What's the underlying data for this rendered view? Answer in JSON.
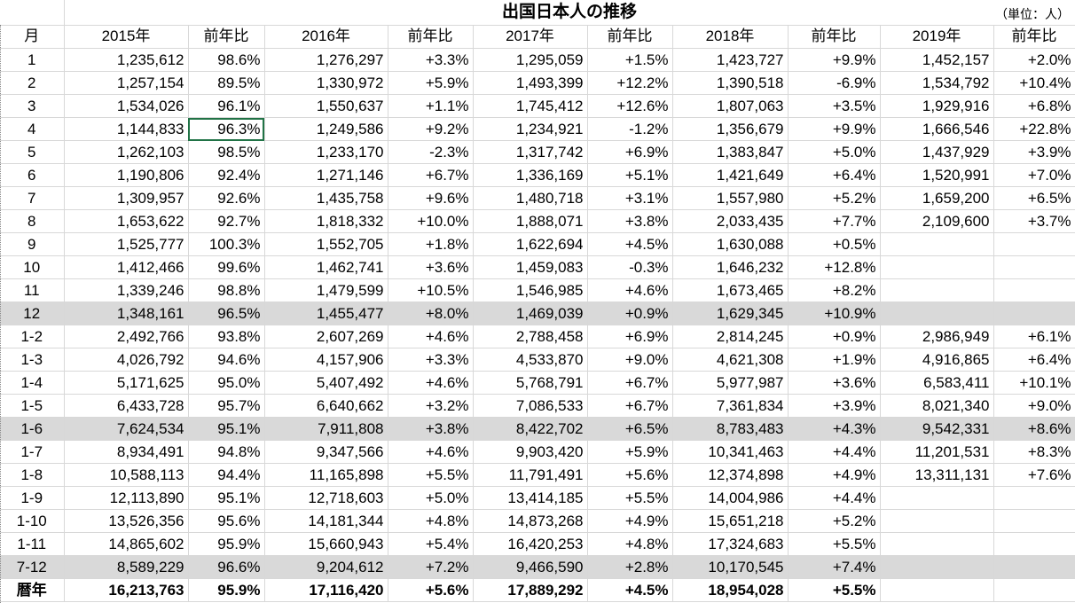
{
  "title": "出国日本人の推移",
  "unit": "（単位：人）",
  "headers": [
    "月",
    "2015年",
    "前年比",
    "2016年",
    "前年比",
    "2017年",
    "前年比",
    "2018年",
    "前年比",
    "2019年",
    "前年比"
  ],
  "rows": [
    {
      "cells": [
        "1",
        "1,235,612",
        "98.6%",
        "1,276,297",
        "+3.3%",
        "1,295,059",
        "+1.5%",
        "1,423,727",
        "+9.9%",
        "1,452,157",
        "+2.0%"
      ]
    },
    {
      "cells": [
        "2",
        "1,257,154",
        "89.5%",
        "1,330,972",
        "+5.9%",
        "1,493,399",
        "+12.2%",
        "1,390,518",
        "-6.9%",
        "1,534,792",
        "+10.4%"
      ]
    },
    {
      "cells": [
        "3",
        "1,534,026",
        "96.1%",
        "1,550,637",
        "+1.1%",
        "1,745,412",
        "+12.6%",
        "1,807,063",
        "+3.5%",
        "1,929,916",
        "+6.8%"
      ]
    },
    {
      "cells": [
        "4",
        "1,144,833",
        "96.3%",
        "1,249,586",
        "+9.2%",
        "1,234,921",
        "-1.2%",
        "1,356,679",
        "+9.9%",
        "1,666,546",
        "+22.8%"
      ]
    },
    {
      "cells": [
        "5",
        "1,262,103",
        "98.5%",
        "1,233,170",
        "-2.3%",
        "1,317,742",
        "+6.9%",
        "1,383,847",
        "+5.0%",
        "1,437,929",
        "+3.9%"
      ]
    },
    {
      "cells": [
        "6",
        "1,190,806",
        "92.4%",
        "1,271,146",
        "+6.7%",
        "1,336,169",
        "+5.1%",
        "1,421,649",
        "+6.4%",
        "1,520,991",
        "+7.0%"
      ]
    },
    {
      "cells": [
        "7",
        "1,309,957",
        "92.6%",
        "1,435,758",
        "+9.6%",
        "1,480,718",
        "+3.1%",
        "1,557,980",
        "+5.2%",
        "1,659,200",
        "+6.5%"
      ]
    },
    {
      "cells": [
        "8",
        "1,653,622",
        "92.7%",
        "1,818,332",
        "+10.0%",
        "1,888,071",
        "+3.8%",
        "2,033,435",
        "+7.7%",
        "2,109,600",
        "+3.7%"
      ]
    },
    {
      "cells": [
        "9",
        "1,525,777",
        "100.3%",
        "1,552,705",
        "+1.8%",
        "1,622,694",
        "+4.5%",
        "1,630,088",
        "+0.5%",
        "",
        ""
      ]
    },
    {
      "cells": [
        "10",
        "1,412,466",
        "99.6%",
        "1,462,741",
        "+3.6%",
        "1,459,083",
        "-0.3%",
        "1,646,232",
        "+12.8%",
        "",
        ""
      ]
    },
    {
      "cells": [
        "11",
        "1,339,246",
        "98.8%",
        "1,479,599",
        "+10.5%",
        "1,546,985",
        "+4.6%",
        "1,673,465",
        "+8.2%",
        "",
        ""
      ]
    },
    {
      "cells": [
        "12",
        "1,348,161",
        "96.5%",
        "1,455,477",
        "+8.0%",
        "1,469,039",
        "+0.9%",
        "1,629,345",
        "+10.9%",
        "",
        ""
      ]
    },
    {
      "cells": [
        "1-2",
        "2,492,766",
        "93.8%",
        "2,607,269",
        "+4.6%",
        "2,788,458",
        "+6.9%",
        "2,814,245",
        "+0.9%",
        "2,986,949",
        "+6.1%"
      ]
    },
    {
      "cells": [
        "1-3",
        "4,026,792",
        "94.6%",
        "4,157,906",
        "+3.3%",
        "4,533,870",
        "+9.0%",
        "4,621,308",
        "+1.9%",
        "4,916,865",
        "+6.4%"
      ]
    },
    {
      "cells": [
        "1-4",
        "5,171,625",
        "95.0%",
        "5,407,492",
        "+4.6%",
        "5,768,791",
        "+6.7%",
        "5,977,987",
        "+3.6%",
        "6,583,411",
        "+10.1%"
      ]
    },
    {
      "cells": [
        "1-5",
        "6,433,728",
        "95.7%",
        "6,640,662",
        "+3.2%",
        "7,086,533",
        "+6.7%",
        "7,361,834",
        "+3.9%",
        "8,021,340",
        "+9.0%"
      ]
    },
    {
      "cells": [
        "1-6",
        "7,624,534",
        "95.1%",
        "7,911,808",
        "+3.8%",
        "8,422,702",
        "+6.5%",
        "8,783,483",
        "+4.3%",
        "9,542,331",
        "+8.6%"
      ]
    },
    {
      "cells": [
        "1-7",
        "8,934,491",
        "94.8%",
        "9,347,566",
        "+4.6%",
        "9,903,420",
        "+5.9%",
        "10,341,463",
        "+4.4%",
        "11,201,531",
        "+8.3%"
      ]
    },
    {
      "cells": [
        "1-8",
        "10,588,113",
        "94.4%",
        "11,165,898",
        "+5.5%",
        "11,791,491",
        "+5.6%",
        "12,374,898",
        "+4.9%",
        "13,311,131",
        "+7.6%"
      ]
    },
    {
      "cells": [
        "1-9",
        "12,113,890",
        "95.1%",
        "12,718,603",
        "+5.0%",
        "13,414,185",
        "+5.5%",
        "14,004,986",
        "+4.4%",
        "",
        ""
      ]
    },
    {
      "cells": [
        "1-10",
        "13,526,356",
        "95.6%",
        "14,181,344",
        "+4.8%",
        "14,873,268",
        "+4.9%",
        "15,651,218",
        "+5.2%",
        "",
        ""
      ]
    },
    {
      "cells": [
        "1-11",
        "14,865,602",
        "95.9%",
        "15,660,943",
        "+5.4%",
        "16,420,253",
        "+4.8%",
        "17,324,683",
        "+5.5%",
        "",
        ""
      ]
    },
    {
      "cells": [
        "7-12",
        "8,589,229",
        "96.6%",
        "9,204,612",
        "+7.2%",
        "9,466,590",
        "+2.8%",
        "10,170,545",
        "+7.4%",
        "",
        ""
      ]
    },
    {
      "cells": [
        "暦年",
        "16,213,763",
        "95.9%",
        "17,116,420",
        "+5.6%",
        "17,889,292",
        "+4.5%",
        "18,954,028",
        "+5.5%",
        "",
        ""
      ]
    }
  ],
  "shaded_rows": [
    11,
    16,
    22
  ],
  "bold_rows": [
    23
  ],
  "selected_cell": {
    "row": 3,
    "col": 2
  },
  "colors": {
    "shade": "#d9d9d9",
    "selection": "#217346"
  }
}
